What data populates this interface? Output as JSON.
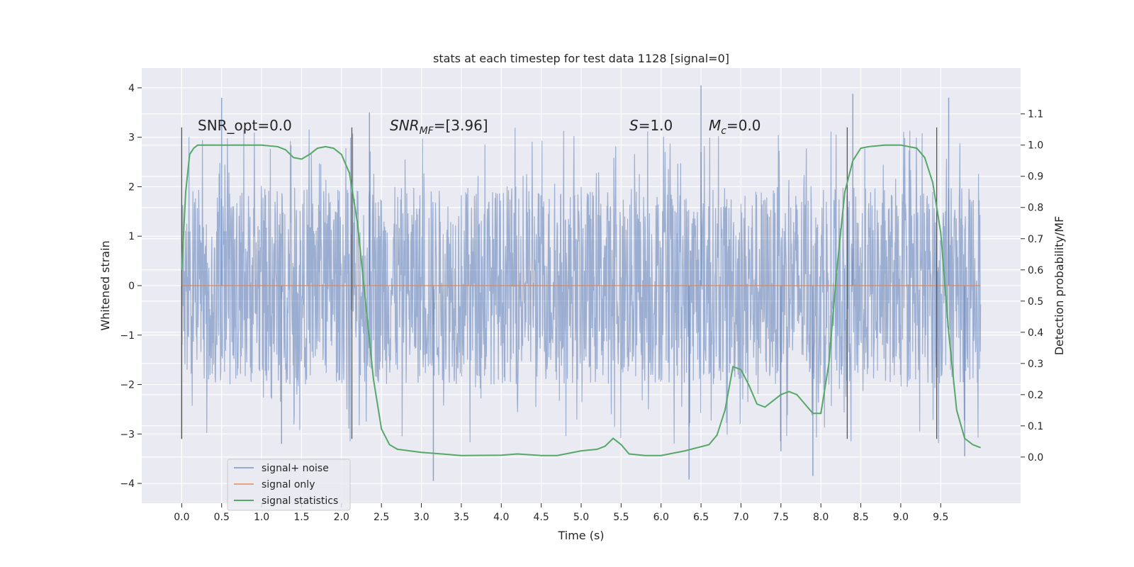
{
  "chart_data": {
    "type": "line",
    "title": "stats at each timestep for test data 1128 [signal=0]",
    "xlabel": "Time (s)",
    "ylabel": "Whitened strain",
    "y2label": "Detection probability/MF",
    "xlim": [
      -0.5,
      10.5
    ],
    "ylim": [
      -4.4,
      4.4
    ],
    "y2lim": [
      -0.148,
      1.247
    ],
    "x_ticks": [
      0.0,
      0.5,
      1.0,
      1.5,
      2.0,
      2.5,
      3.0,
      3.5,
      4.0,
      4.5,
      5.0,
      5.5,
      6.0,
      6.5,
      7.0,
      7.5,
      8.0,
      8.5,
      9.0,
      9.5
    ],
    "x_tick_labels": [
      "0.0",
      "0.5",
      "1.0",
      "1.5",
      "2.0",
      "2.5",
      "3.0",
      "3.5",
      "4.0",
      "4.5",
      "5.0",
      "5.5",
      "6.0",
      "6.5",
      "7.0",
      "7.5",
      "8.0",
      "8.5",
      "9.0",
      "9.5"
    ],
    "y_ticks": [
      -4,
      -3,
      -2,
      -1,
      0,
      1,
      2,
      3,
      4
    ],
    "y_tick_labels": [
      "−4",
      "−3",
      "−2",
      "−1",
      "0",
      "1",
      "2",
      "3",
      "4"
    ],
    "y2_ticks": [
      0.0,
      0.1,
      0.2,
      0.3,
      0.4,
      0.5,
      0.6,
      0.7,
      0.8,
      0.9,
      1.0,
      1.1
    ],
    "y2_tick_labels": [
      "0.0",
      "0.1",
      "0.2",
      "0.3",
      "0.4",
      "0.5",
      "0.6",
      "0.7",
      "0.8",
      "0.9",
      "1.0",
      "1.1"
    ],
    "grid": true,
    "legend_position": "lower-left",
    "series": [
      {
        "name": "signal+ noise",
        "axis": "left",
        "color": "#4c72b0",
        "style": "dense noise, approx. range -4 to 4 over 0-10 s",
        "x_range": [
          0.0,
          10.0
        ],
        "envelope_y": [
          -2.0,
          2.0
        ],
        "peaks": [
          {
            "x": 0.5,
            "y": 3.8
          },
          {
            "x": 2.35,
            "y": 3.5
          },
          {
            "x": 6.5,
            "y": 4.05
          },
          {
            "x": 8.4,
            "y": 3.88
          },
          {
            "x": 9.6,
            "y": 3.8
          },
          {
            "x": 3.15,
            "y": -3.95
          },
          {
            "x": 6.35,
            "y": -3.92
          },
          {
            "x": 7.9,
            "y": -3.85
          },
          {
            "x": 0.0,
            "y": -3.1
          },
          {
            "x": 1.25,
            "y": -3.2
          },
          {
            "x": 7.5,
            "y": -3.35
          },
          {
            "x": 9.8,
            "y": -3.45
          }
        ]
      },
      {
        "name": "signal only",
        "axis": "left",
        "color": "#dd8452",
        "x": [
          0.0,
          10.0
        ],
        "values": [
          0.0,
          0.0
        ]
      },
      {
        "name": "signal statistics",
        "axis": "right",
        "color": "#55a868",
        "x": [
          0.0,
          0.05,
          0.1,
          0.15,
          0.2,
          0.3,
          0.5,
          0.8,
          1.0,
          1.2,
          1.3,
          1.4,
          1.5,
          1.6,
          1.7,
          1.8,
          1.9,
          2.0,
          2.1,
          2.2,
          2.3,
          2.4,
          2.5,
          2.6,
          2.7,
          3.0,
          3.5,
          4.0,
          4.2,
          4.5,
          4.7,
          5.0,
          5.2,
          5.3,
          5.4,
          5.5,
          5.6,
          5.8,
          6.0,
          6.3,
          6.6,
          6.7,
          6.8,
          6.9,
          7.0,
          7.1,
          7.2,
          7.3,
          7.5,
          7.6,
          7.7,
          7.8,
          7.9,
          8.0,
          8.1,
          8.2,
          8.3,
          8.4,
          8.5,
          8.6,
          8.8,
          9.0,
          9.2,
          9.3,
          9.4,
          9.5,
          9.6,
          9.7,
          9.8,
          9.9,
          10.0
        ],
        "values": [
          0.6,
          0.85,
          0.97,
          0.99,
          1.0,
          1.0,
          1.0,
          1.0,
          1.0,
          0.995,
          0.985,
          0.96,
          0.955,
          0.97,
          0.99,
          0.995,
          0.99,
          0.97,
          0.91,
          0.75,
          0.5,
          0.25,
          0.09,
          0.04,
          0.025,
          0.015,
          0.005,
          0.006,
          0.01,
          0.005,
          0.005,
          0.02,
          0.025,
          0.035,
          0.06,
          0.04,
          0.01,
          0.005,
          0.005,
          0.02,
          0.04,
          0.07,
          0.15,
          0.29,
          0.28,
          0.23,
          0.17,
          0.16,
          0.2,
          0.21,
          0.2,
          0.17,
          0.14,
          0.14,
          0.3,
          0.6,
          0.85,
          0.95,
          0.99,
          0.995,
          1.0,
          1.0,
          0.99,
          0.96,
          0.88,
          0.72,
          0.4,
          0.15,
          0.06,
          0.04,
          0.03
        ]
      }
    ],
    "vertical_markers": [
      {
        "x": 0.0,
        "y_from": -3.1,
        "y_to": 3.2
      },
      {
        "x": 2.13,
        "y_from": -3.1,
        "y_to": 3.2
      },
      {
        "x": 8.33,
        "y_from": -3.1,
        "y_to": 3.2
      },
      {
        "x": 9.45,
        "y_from": -3.1,
        "y_to": 3.2
      }
    ],
    "annotations": [
      {
        "key": "snr_opt",
        "text": "SNR_opt=0.0",
        "x": 0.2,
        "y": 3.2
      },
      {
        "key": "snr_mf",
        "text": "SNRMF=[3.96]",
        "x": 2.6,
        "y": 3.2
      },
      {
        "key": "s",
        "text": "S=1.0",
        "x": 5.6,
        "y": 3.2
      },
      {
        "key": "mc",
        "text": "Mc=0.0",
        "x": 6.6,
        "y": 3.2
      }
    ]
  }
}
